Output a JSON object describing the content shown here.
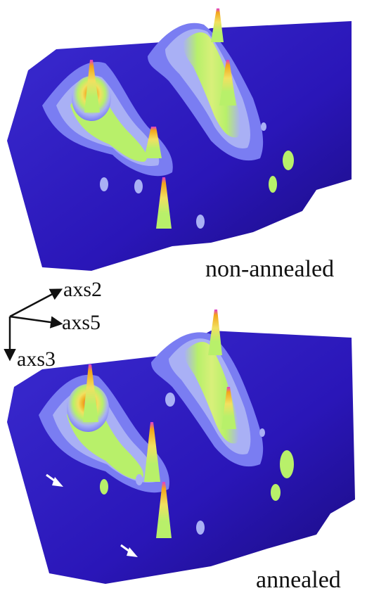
{
  "panels": {
    "top_label": "non-annealed",
    "bottom_label": "annealed"
  },
  "axes": {
    "axis_x": "axs2",
    "axis_y": "axs5",
    "axis_z": "axs3"
  },
  "colors": {
    "background": "#ffffff",
    "surface_low": "#2a16b8",
    "surface_mid": "#7a7df2",
    "surface_band": "#a9b0f5",
    "surface_green": "#b8f06a",
    "surface_yellow": "#f2e060",
    "surface_orange": "#f2a51a",
    "surface_peak": "#e03ad0",
    "arrow": "#ffffff"
  }
}
